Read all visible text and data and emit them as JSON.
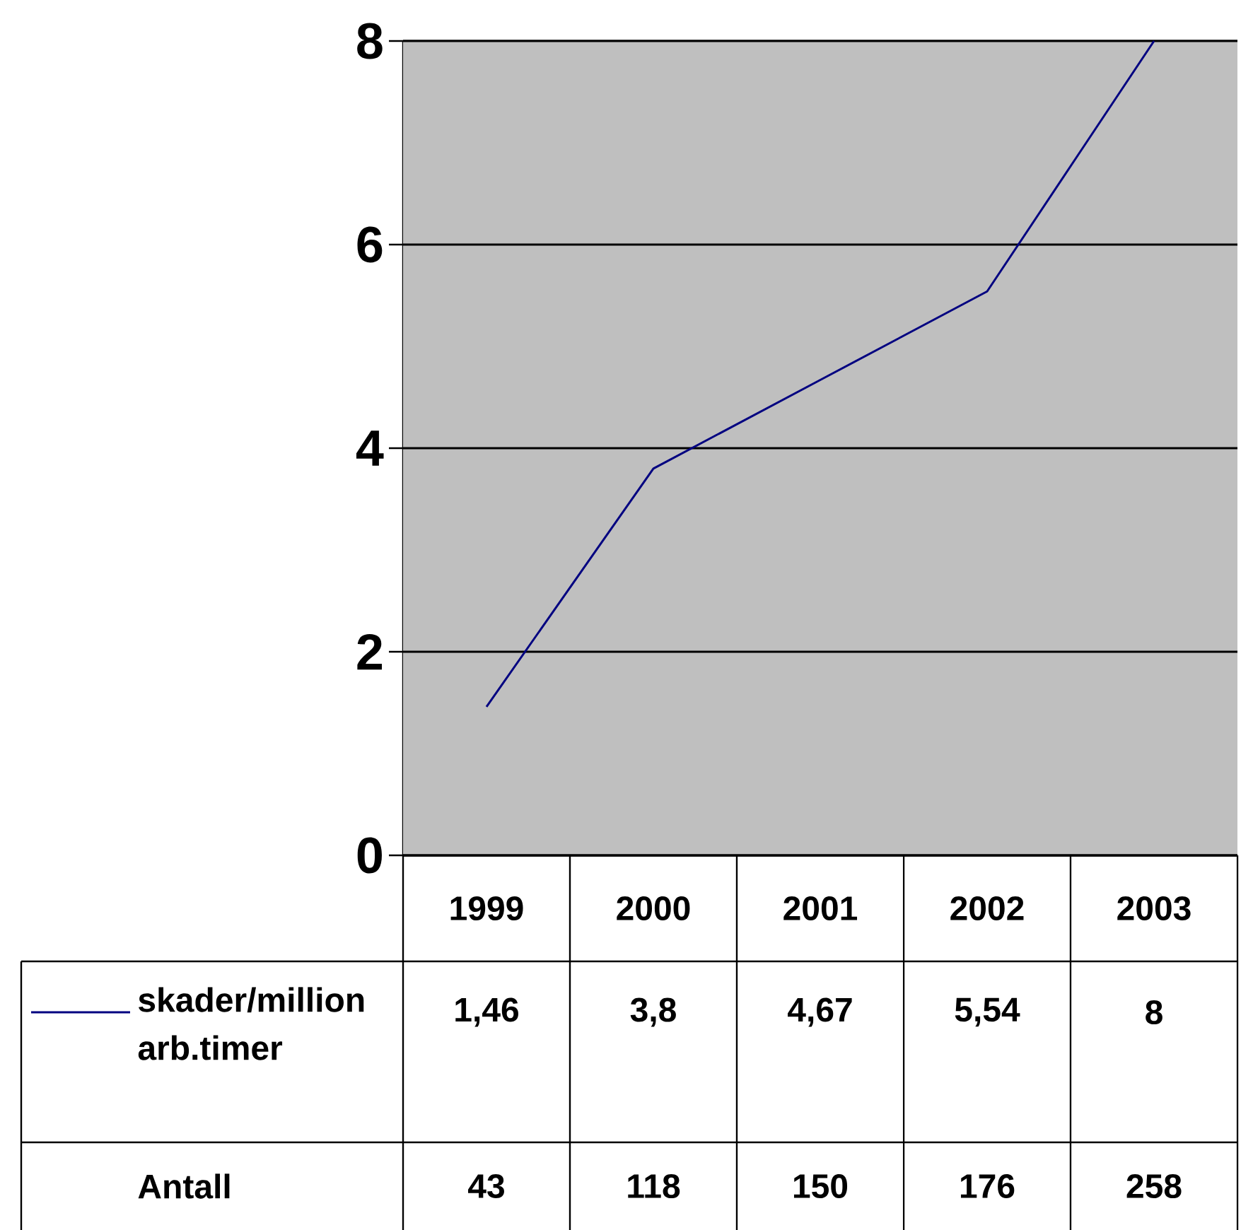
{
  "chart_data": {
    "type": "line",
    "categories": [
      "1999",
      "2000",
      "2001",
      "2002",
      "2003"
    ],
    "series": [
      {
        "name": "skader/million arb.timer",
        "color": "#000080",
        "values": [
          1.46,
          3.8,
          4.67,
          5.54,
          8
        ],
        "value_labels": [
          "1,46",
          "3,8",
          "4,67",
          "5,54",
          "8"
        ]
      }
    ],
    "annotations": [
      "Antall",
      "43",
      "118",
      "150",
      "176",
      "258"
    ],
    "ylim": [
      0,
      8
    ],
    "yticks": [
      0,
      2,
      4,
      6,
      8
    ],
    "grid": "y",
    "data_labels": true,
    "marker": "none",
    "line_style": "solid"
  }
}
